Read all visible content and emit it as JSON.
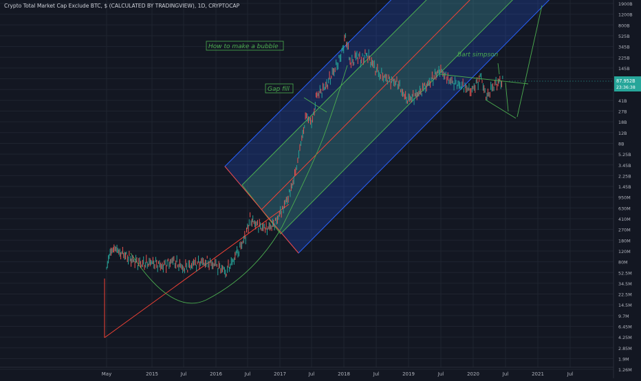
{
  "title": "Crypto Total Market Cap Exclude BTC, $ (CALCULATED BY TRADINGVIEW), 1D, CRYPTOCAP",
  "colors": {
    "background": "#131722",
    "grid": "#1f2430",
    "axis_text": "#b2b5be",
    "up": "#26a69a",
    "down": "#ef5350",
    "channel_outer": "#2962ff",
    "channel_inner": "#4caf50",
    "midline": "#f44336",
    "annotation": "#4caf50",
    "price_label": "#26a69a"
  },
  "chart_data": {
    "type": "line",
    "y_scale": "log",
    "x_ticks": [
      "May",
      "2015",
      "Jul",
      "2016",
      "Jul",
      "2017",
      "Jul",
      "2018",
      "Jul",
      "2019",
      "Jul",
      "2020",
      "Jul",
      "2021",
      "Jul"
    ],
    "y_ticks": [
      "1900B",
      "1200B",
      "800B",
      "525B",
      "345B",
      "225B",
      "145B",
      "96B",
      "63B",
      "41B",
      "27B",
      "18B",
      "12B",
      "8B",
      "5.25B",
      "3.45B",
      "2.25B",
      "1.45B",
      "950M",
      "630M",
      "410M",
      "270M",
      "180M",
      "120M",
      "80M",
      "52.5M",
      "34.5M",
      "22.5M",
      "14.5M",
      "9.7M",
      "6.45M",
      "4.25M",
      "2.85M",
      "1.9M",
      "1.26M"
    ],
    "last_price": "87.952B",
    "countdown": "23:36:38",
    "series": [
      {
        "values": [
          [
            "2014-05-01",
            70000000
          ],
          [
            "2014-05-20",
            110000000
          ],
          [
            "2014-06-10",
            150000000
          ],
          [
            "2014-07-01",
            120000000
          ],
          [
            "2014-08-01",
            110000000
          ],
          [
            "2014-09-15",
            90000000
          ],
          [
            "2014-11-01",
            75000000
          ],
          [
            "2015-01-01",
            80000000
          ],
          [
            "2015-03-01",
            70000000
          ],
          [
            "2015-05-01",
            85000000
          ],
          [
            "2015-07-01",
            65000000
          ],
          [
            "2015-09-01",
            75000000
          ],
          [
            "2015-11-01",
            85000000
          ],
          [
            "2016-01-01",
            70000000
          ],
          [
            "2016-03-01",
            58000000
          ],
          [
            "2016-05-01",
            110000000
          ],
          [
            "2016-06-20",
            230000000
          ],
          [
            "2016-07-15",
            430000000
          ],
          [
            "2016-09-01",
            330000000
          ],
          [
            "2016-10-15",
            300000000
          ],
          [
            "2016-12-01",
            350000000
          ],
          [
            "2017-01-15",
            650000000
          ],
          [
            "2017-03-01",
            1200000000
          ],
          [
            "2017-04-01",
            2800000000
          ],
          [
            "2017-05-01",
            8000000000
          ],
          [
            "2017-06-01",
            25000000000
          ],
          [
            "2017-07-01",
            17000000000
          ],
          [
            "2017-08-01",
            55000000000
          ],
          [
            "2017-09-15",
            70000000000
          ],
          [
            "2017-11-01",
            130000000000
          ],
          [
            "2017-12-15",
            240000000000
          ],
          [
            "2018-01-10",
            520000000000
          ],
          [
            "2018-02-10",
            180000000000
          ],
          [
            "2018-03-15",
            250000000000
          ],
          [
            "2018-04-10",
            210000000000
          ],
          [
            "2018-05-10",
            270000000000
          ],
          [
            "2018-06-15",
            165000000000
          ],
          [
            "2018-07-20",
            125000000000
          ],
          [
            "2018-09-10",
            95000000000
          ],
          [
            "2018-11-01",
            88000000000
          ],
          [
            "2018-12-15",
            45000000000
          ],
          [
            "2019-02-01",
            50000000000
          ],
          [
            "2019-04-01",
            70000000000
          ],
          [
            "2019-06-25",
            145000000000
          ],
          [
            "2019-08-10",
            100000000000
          ],
          [
            "2019-10-01",
            80000000000
          ],
          [
            "2019-11-15",
            75000000000
          ],
          [
            "2019-12-20",
            62000000000
          ],
          [
            "2020-02-15",
            110000000000
          ],
          [
            "2020-03-13",
            48000000000
          ],
          [
            "2020-04-15",
            70000000000
          ],
          [
            "2020-05-20",
            92000000000
          ],
          [
            "2020-06-20",
            87952000000
          ]
        ]
      }
    ],
    "annotations": [
      "How to make a bubble",
      "Gap fill",
      "Bart simpson"
    ],
    "grid": true
  }
}
